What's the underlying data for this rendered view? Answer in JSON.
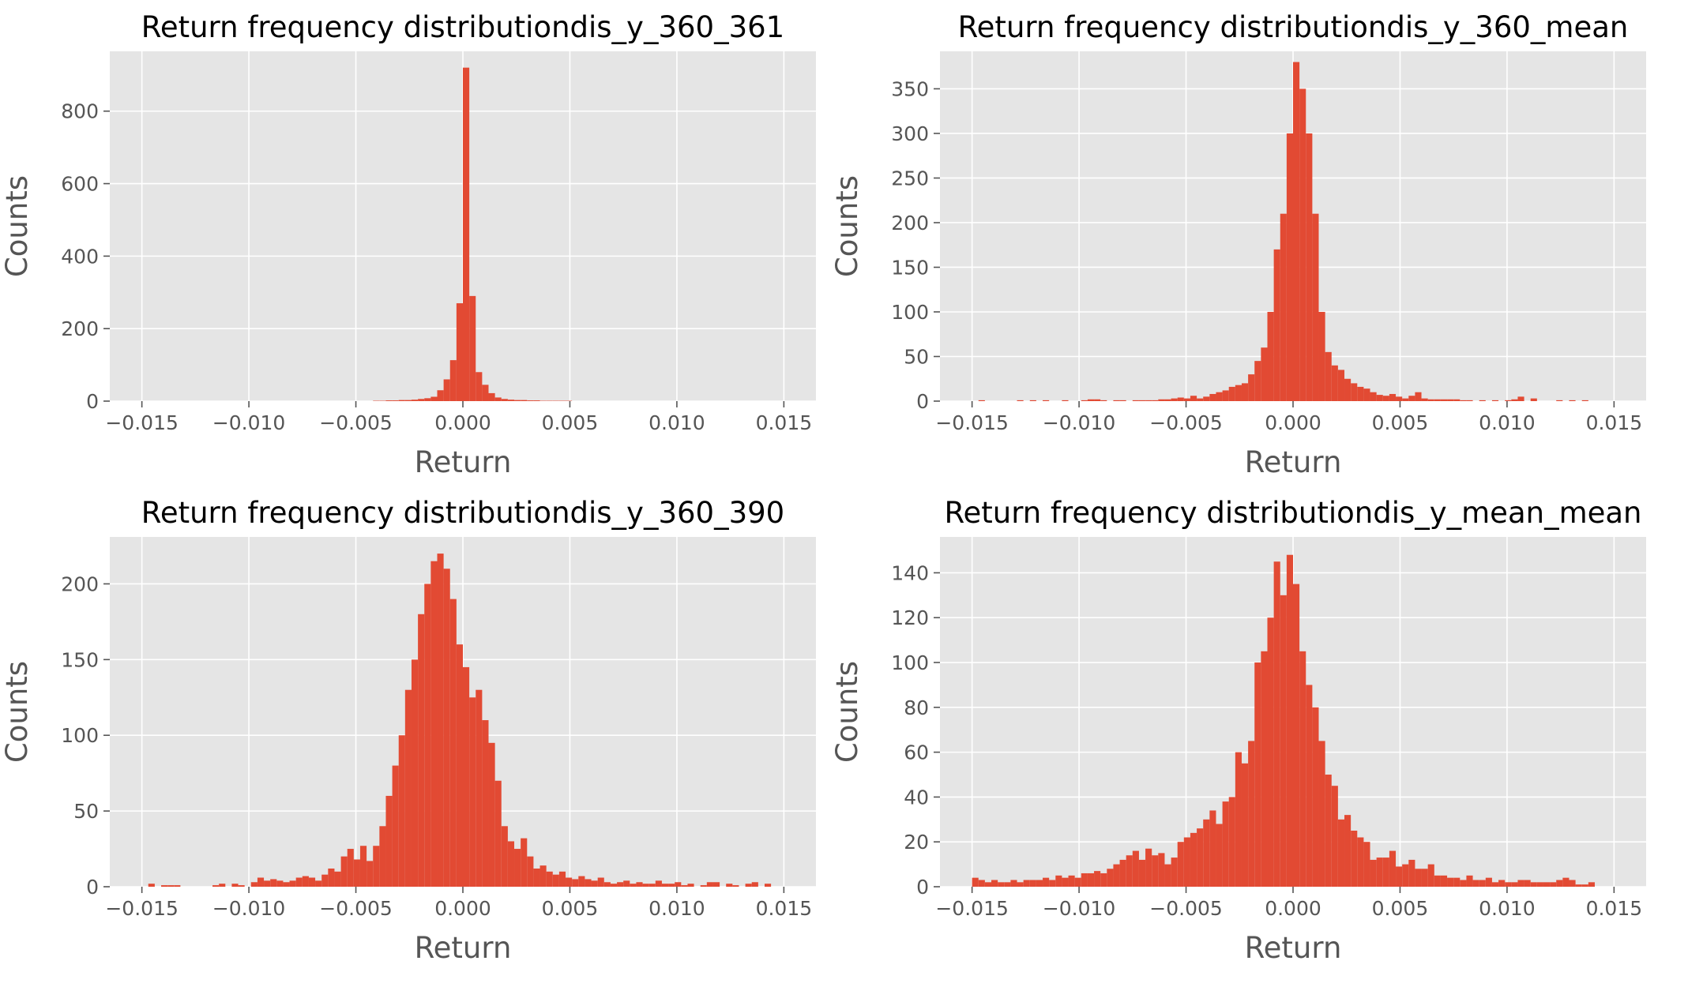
{
  "chart_data": [
    {
      "type": "bar",
      "title": "Return frequency distributiondis_y_360_361",
      "xlabel": "Return",
      "ylabel": "Counts",
      "xlim": [
        -0.0165,
        0.0165
      ],
      "ylim": [
        0,
        965
      ],
      "xticks": [
        -0.015,
        -0.01,
        -0.005,
        0.0,
        0.005,
        0.01,
        0.015
      ],
      "xtick_labels": [
        "−0.015",
        "−0.010",
        "−0.005",
        "0.000",
        "0.005",
        "0.010",
        "0.015"
      ],
      "yticks": [
        0,
        200,
        400,
        600,
        800
      ],
      "ytick_labels": [
        "0",
        "200",
        "400",
        "600",
        "800"
      ],
      "grid": true,
      "bar_color": "#E24A33",
      "bin_width": 0.0003,
      "x": [
        -0.0042,
        -0.0039,
        -0.0036,
        -0.0033,
        -0.003,
        -0.0027,
        -0.0024,
        -0.0021,
        -0.0018,
        -0.0015,
        -0.0012,
        -0.0009,
        -0.0006,
        -0.0003,
        0.0,
        0.0003,
        0.0006,
        0.0009,
        0.0012,
        0.0015,
        0.0018,
        0.0021,
        0.0024,
        0.0027,
        0.003,
        0.0033,
        0.0036,
        0.0039,
        0.0042,
        0.0045,
        0.0048
      ],
      "values": [
        1,
        1,
        2,
        2,
        3,
        3,
        4,
        6,
        8,
        12,
        30,
        60,
        113,
        270,
        920,
        290,
        80,
        45,
        22,
        10,
        6,
        4,
        3,
        3,
        2,
        2,
        1,
        1,
        1,
        1,
        1
      ]
    },
    {
      "type": "bar",
      "title": "Return frequency distributiondis_y_360_mean",
      "xlabel": "Return",
      "ylabel": "Counts",
      "xlim": [
        -0.0165,
        0.0165
      ],
      "ylim": [
        0,
        392
      ],
      "xticks": [
        -0.015,
        -0.01,
        -0.005,
        0.0,
        0.005,
        0.01,
        0.015
      ],
      "xtick_labels": [
        "−0.015",
        "−0.010",
        "−0.005",
        "0.000",
        "0.005",
        "0.010",
        "0.015"
      ],
      "yticks": [
        0,
        50,
        100,
        150,
        200,
        250,
        300,
        350
      ],
      "ytick_labels": [
        "0",
        "50",
        "100",
        "150",
        "200",
        "250",
        "300",
        "350"
      ],
      "grid": true,
      "bar_color": "#E24A33",
      "bin_width": 0.0003,
      "x": [
        -0.0147,
        -0.0129,
        -0.0123,
        -0.0117,
        -0.0108,
        -0.0099,
        -0.0096,
        -0.0093,
        -0.009,
        -0.0084,
        -0.0081,
        -0.0075,
        -0.0072,
        -0.0069,
        -0.0066,
        -0.0063,
        -0.006,
        -0.0057,
        -0.0054,
        -0.0051,
        -0.0048,
        -0.0045,
        -0.0042,
        -0.0039,
        -0.0036,
        -0.0033,
        -0.003,
        -0.0027,
        -0.0024,
        -0.0021,
        -0.0018,
        -0.0015,
        -0.0012,
        -0.0009,
        -0.0006,
        -0.0003,
        0.0,
        0.0003,
        0.0006,
        0.0009,
        0.0012,
        0.0015,
        0.0018,
        0.0021,
        0.0024,
        0.0027,
        0.003,
        0.0033,
        0.0036,
        0.0039,
        0.0042,
        0.0045,
        0.0048,
        0.0051,
        0.0054,
        0.0057,
        0.006,
        0.0063,
        0.0066,
        0.0069,
        0.0072,
        0.0075,
        0.0078,
        0.0081,
        0.0087,
        0.0093,
        0.0099,
        0.0102,
        0.0105,
        0.0111,
        0.0123,
        0.0129,
        0.0135
      ],
      "values": [
        1,
        1,
        1,
        1,
        1,
        1,
        2,
        2,
        1,
        1,
        1,
        1,
        1,
        1,
        1,
        2,
        2,
        3,
        4,
        3,
        6,
        3,
        5,
        8,
        10,
        12,
        16,
        18,
        20,
        30,
        45,
        60,
        100,
        170,
        210,
        300,
        380,
        350,
        300,
        210,
        100,
        55,
        40,
        35,
        25,
        20,
        16,
        14,
        10,
        7,
        6,
        8,
        5,
        3,
        6,
        10,
        3,
        2,
        2,
        2,
        2,
        2,
        1,
        1,
        1,
        1,
        1,
        2,
        5,
        3,
        1,
        1,
        1
      ]
    },
    {
      "type": "bar",
      "title": "Return frequency distributiondis_y_360_390",
      "xlabel": "Return",
      "ylabel": "Counts",
      "xlim": [
        -0.0165,
        0.0165
      ],
      "ylim": [
        0,
        231
      ],
      "xticks": [
        -0.015,
        -0.01,
        -0.005,
        0.0,
        0.005,
        0.01,
        0.015
      ],
      "xtick_labels": [
        "−0.015",
        "−0.010",
        "−0.005",
        "0.000",
        "0.005",
        "0.010",
        "0.015"
      ],
      "yticks": [
        0,
        50,
        100,
        150,
        200
      ],
      "ytick_labels": [
        "0",
        "50",
        "100",
        "150",
        "200"
      ],
      "grid": true,
      "bar_color": "#E24A33",
      "bin_width": 0.0003,
      "x": [
        -0.0147,
        -0.0141,
        -0.0138,
        -0.0135,
        -0.0117,
        -0.0114,
        -0.0108,
        -0.0105,
        -0.0099,
        -0.0093,
        -0.0096,
        -0.009,
        -0.0087,
        -0.0084,
        -0.0081,
        -0.0078,
        -0.0075,
        -0.0072,
        -0.0069,
        -0.0066,
        -0.0063,
        -0.006,
        -0.0057,
        -0.0054,
        -0.0051,
        -0.0048,
        -0.0045,
        -0.0042,
        -0.0039,
        -0.0036,
        -0.0033,
        -0.003,
        -0.0027,
        -0.0024,
        -0.0021,
        -0.0018,
        -0.0015,
        -0.0012,
        -0.0009,
        -0.0006,
        -0.0003,
        0.0,
        0.0003,
        0.0006,
        0.0009,
        0.0012,
        0.0015,
        0.0018,
        0.0021,
        0.0024,
        0.0027,
        0.003,
        0.0033,
        0.0036,
        0.0039,
        0.0042,
        0.0045,
        0.0048,
        0.0051,
        0.0054,
        0.0057,
        0.006,
        0.0063,
        0.0066,
        0.0069,
        0.0072,
        0.0075,
        0.0078,
        0.0081,
        0.0084,
        0.0087,
        0.009,
        0.0093,
        0.0096,
        0.0099,
        0.0102,
        0.0105,
        0.0111,
        0.0114,
        0.0117,
        0.0123,
        0.0126,
        0.0132,
        0.0135,
        0.0141
      ],
      "values": [
        2,
        1,
        1,
        1,
        1,
        2,
        2,
        1,
        3,
        4,
        6,
        5,
        4,
        3,
        4,
        6,
        7,
        6,
        4,
        8,
        12,
        10,
        20,
        25,
        18,
        27,
        17,
        27,
        40,
        60,
        80,
        100,
        130,
        150,
        180,
        200,
        215,
        220,
        210,
        190,
        160,
        145,
        125,
        130,
        110,
        95,
        70,
        40,
        30,
        25,
        32,
        20,
        12,
        14,
        10,
        8,
        10,
        6,
        5,
        7,
        5,
        4,
        6,
        3,
        2,
        3,
        4,
        2,
        3,
        2,
        2,
        4,
        2,
        2,
        3,
        1,
        2,
        1,
        3,
        3,
        2,
        1,
        2,
        3,
        2
      ]
    },
    {
      "type": "bar",
      "title": "Return frequency distributiondis_y_mean_mean",
      "xlabel": "Return",
      "ylabel": "Counts",
      "xlim": [
        -0.0165,
        0.0165
      ],
      "ylim": [
        0,
        156
      ],
      "xticks": [
        -0.015,
        -0.01,
        -0.005,
        0.0,
        0.005,
        0.01,
        0.015
      ],
      "xtick_labels": [
        "−0.015",
        "−0.010",
        "−0.005",
        "0.000",
        "0.005",
        "0.010",
        "0.015"
      ],
      "yticks": [
        0,
        20,
        40,
        60,
        80,
        100,
        120,
        140
      ],
      "ytick_labels": [
        "0",
        "20",
        "40",
        "60",
        "80",
        "100",
        "120",
        "140"
      ],
      "grid": true,
      "bar_color": "#E24A33",
      "bin_width": 0.0003,
      "x": [
        -0.015,
        -0.0147,
        -0.0144,
        -0.0141,
        -0.0138,
        -0.0135,
        -0.0132,
        -0.0129,
        -0.0126,
        -0.0123,
        -0.012,
        -0.0117,
        -0.0114,
        -0.0111,
        -0.0108,
        -0.0105,
        -0.0102,
        -0.0099,
        -0.0096,
        -0.0093,
        -0.009,
        -0.0087,
        -0.0084,
        -0.0081,
        -0.0078,
        -0.0075,
        -0.0072,
        -0.0069,
        -0.0066,
        -0.0063,
        -0.006,
        -0.0057,
        -0.0054,
        -0.0051,
        -0.0048,
        -0.0045,
        -0.0042,
        -0.0039,
        -0.0036,
        -0.0033,
        -0.003,
        -0.0027,
        -0.0024,
        -0.0021,
        -0.0018,
        -0.0015,
        -0.0012,
        -0.0009,
        -0.0006,
        -0.0003,
        0.0,
        0.0003,
        0.0006,
        0.0009,
        0.0012,
        0.0015,
        0.0018,
        0.0021,
        0.0024,
        0.0027,
        0.003,
        0.0033,
        0.0036,
        0.0039,
        0.0042,
        0.0045,
        0.0048,
        0.0051,
        0.0054,
        0.0057,
        0.006,
        0.0063,
        0.0066,
        0.0069,
        0.0072,
        0.0075,
        0.0078,
        0.0081,
        0.0084,
        0.0087,
        0.009,
        0.0093,
        0.0096,
        0.0099,
        0.0102,
        0.0105,
        0.0108,
        0.0111,
        0.0114,
        0.0117,
        0.012,
        0.0123,
        0.0126,
        0.0129,
        0.0132,
        0.0135,
        0.0138
      ],
      "values": [
        4,
        3,
        2,
        3,
        2,
        2,
        3,
        2,
        3,
        3,
        3,
        4,
        3,
        5,
        4,
        5,
        4,
        6,
        6,
        7,
        6,
        8,
        10,
        12,
        14,
        16,
        12,
        17,
        14,
        15,
        10,
        13,
        20,
        22,
        24,
        26,
        30,
        34,
        28,
        38,
        40,
        60,
        55,
        65,
        100,
        105,
        120,
        145,
        130,
        148,
        135,
        105,
        90,
        80,
        65,
        50,
        45,
        30,
        32,
        25,
        22,
        20,
        12,
        13,
        13,
        16,
        9,
        10,
        12,
        8,
        8,
        10,
        5,
        5,
        4,
        4,
        3,
        5,
        3,
        3,
        4,
        2,
        3,
        2,
        2,
        3,
        3,
        2,
        2,
        2,
        2,
        3,
        4,
        3,
        1,
        1,
        2
      ]
    }
  ]
}
